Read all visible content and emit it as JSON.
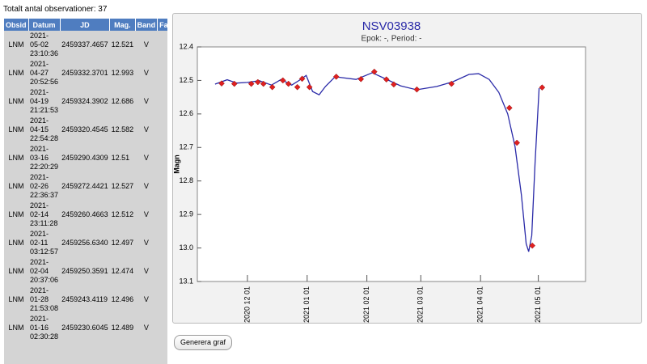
{
  "summary": "Totalt antal observationer: 37",
  "table": {
    "columns": [
      "Obsid",
      "Datum",
      "JD",
      "Mag.",
      "Band",
      "Fas"
    ],
    "rows": [
      [
        "LNM",
        [
          "2021-",
          "05-02",
          "23:10:36"
        ],
        "2459337.4657",
        "12.521",
        "V"
      ],
      [
        "LNM",
        [
          "2021-",
          "04-27",
          "20:52:56"
        ],
        "2459332.3701",
        "12.993",
        "V"
      ],
      [
        "LNM",
        [
          "2021-",
          "04-19",
          "21:21:53"
        ],
        "2459324.3902",
        "12.686",
        "V"
      ],
      [
        "LNM",
        [
          "2021-",
          "04-15",
          "22:54:28"
        ],
        "2459320.4545",
        "12.582",
        "V"
      ],
      [
        "LNM",
        [
          "2021-",
          "03-16",
          "22:20:29"
        ],
        "2459290.4309",
        "12.51",
        "V"
      ],
      [
        "LNM",
        [
          "2021-",
          "02-26",
          "22:36:37"
        ],
        "2459272.4421",
        "12.527",
        "V"
      ],
      [
        "LNM",
        [
          "2021-",
          "02-14",
          "23:11:28"
        ],
        "2459260.4663",
        "12.512",
        "V"
      ],
      [
        "LNM",
        [
          "2021-",
          "02-11",
          "03:12:57"
        ],
        "2459256.6340",
        "12.497",
        "V"
      ],
      [
        "LNM",
        [
          "2021-",
          "02-04",
          "20:37:06"
        ],
        "2459250.3591",
        "12.474",
        "V"
      ],
      [
        "LNM",
        [
          "2021-",
          "01-28",
          "21:53:08"
        ],
        "2459243.4119",
        "12.496",
        "V"
      ],
      [
        "LNM",
        [
          "2021-",
          "01-16",
          "02:30:28"
        ],
        "2459230.6045",
        "12.489",
        "V"
      ]
    ]
  },
  "chart_data": {
    "type": "line",
    "title": "NSV03938",
    "subtitle": "Epok: -, Period: -",
    "y_label": "Magn",
    "xlim": [
      2459158.5,
      2459360
    ],
    "ylim": [
      13.1,
      12.4
    ],
    "xticks": [
      {
        "value": 2459184.5,
        "label": "2020 12 01"
      },
      {
        "value": 2459215.5,
        "label": "2021 01 01"
      },
      {
        "value": 2459246.5,
        "label": "2021 02 01"
      },
      {
        "value": 2459274.5,
        "label": "2021 03 01"
      },
      {
        "value": 2459305.5,
        "label": "2021 04 01"
      },
      {
        "value": 2459335.5,
        "label": "2021 05 01"
      }
    ],
    "yticks": [
      12.4,
      12.5,
      12.6,
      12.7,
      12.8,
      12.9,
      {
        "value": 13,
        "label": "13.0"
      },
      13.1
    ],
    "series": [
      {
        "style": "line",
        "color": "#2a2aa8",
        "x": [
          2459167.7,
          2459174.0,
          2459179.0,
          2459184.4,
          2459190.7,
          2459197.0,
          2459202.0,
          2459207.5,
          2459211.6,
          2459215.0,
          2459218.3,
          2459221.7,
          2459225.0,
          2459230.0,
          2459240.9,
          2459249.3,
          2459255.6,
          2459264.0,
          2459272.3,
          2459282.8,
          2459291.1,
          2459299.5,
          2459304.5,
          2459310.0,
          2459315.0,
          2459319.6,
          2459323.4,
          2459326.7,
          2459329.2,
          2459330.5,
          2459332.1,
          2459333.8,
          2459335.9
        ],
        "values": [
          12.511,
          12.498,
          12.508,
          12.506,
          12.501,
          12.514,
          12.497,
          12.514,
          12.499,
          12.485,
          12.533,
          12.543,
          12.518,
          12.489,
          12.497,
          12.477,
          12.494,
          12.516,
          12.528,
          12.518,
          12.504,
          12.482,
          12.48,
          12.497,
          12.536,
          12.6,
          12.697,
          12.842,
          12.987,
          13.011,
          12.963,
          12.746,
          12.523
        ]
      },
      {
        "style": "points",
        "color": "#e02020",
        "x": [
          2459171.1,
          2459177.7,
          2459186.5,
          2459189.9,
          2459192.8,
          2459197.4,
          2459202.9,
          2459205.8,
          2459210.4,
          2459212.9,
          2459216.7,
          2459230.6045,
          2459243.4119,
          2459250.3591,
          2459256.634,
          2459260.4663,
          2459272.4421,
          2459290.4309,
          2459320.4545,
          2459324.3902,
          2459332.3701,
          2459337.4657
        ],
        "values": [
          12.509,
          12.51,
          12.51,
          12.505,
          12.51,
          12.52,
          12.5,
          12.51,
          12.52,
          12.495,
          12.52,
          12.489,
          12.496,
          12.474,
          12.497,
          12.512,
          12.527,
          12.51,
          12.582,
          12.686,
          12.993,
          12.521
        ]
      }
    ]
  },
  "button": "Generera graf"
}
